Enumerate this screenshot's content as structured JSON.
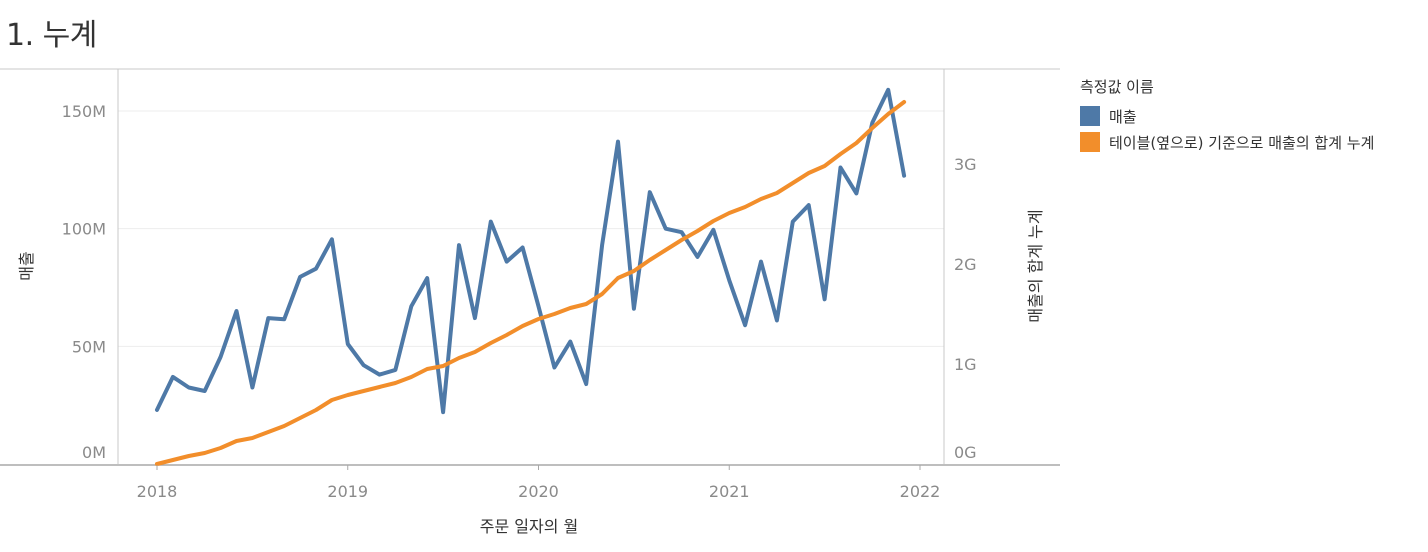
{
  "title": "1. 누계",
  "legend": {
    "title": "측정값 이름",
    "items": [
      {
        "label": "매출",
        "color": "#4e79a7"
      },
      {
        "label": "테이블(옆으로) 기준으로 매출의 합계 누계",
        "color": "#f28e2b"
      }
    ]
  },
  "chart_data": {
    "type": "line",
    "xlabel": "주문 일자의 월",
    "ylabel": "매출",
    "y2label": "매출의 합계 누계",
    "x_ticks": [
      "2018",
      "2019",
      "2020",
      "2021",
      "2022"
    ],
    "y_ticks": [
      "0M",
      "50M",
      "100M",
      "150M"
    ],
    "y2_ticks": [
      "0G",
      "1G",
      "2G",
      "3G"
    ],
    "ylim": [
      0,
      160000000
    ],
    "y2lim": [
      0,
      3700000000
    ],
    "grid": true,
    "x": [
      "2018-01",
      "2018-02",
      "2018-03",
      "2018-04",
      "2018-05",
      "2018-06",
      "2018-07",
      "2018-08",
      "2018-09",
      "2018-10",
      "2018-11",
      "2018-12",
      "2019-01",
      "2019-02",
      "2019-03",
      "2019-04",
      "2019-05",
      "2019-06",
      "2019-07",
      "2019-08",
      "2019-09",
      "2019-10",
      "2019-11",
      "2019-12",
      "2020-01",
      "2020-02",
      "2020-03",
      "2020-04",
      "2020-05",
      "2020-06",
      "2020-07",
      "2020-08",
      "2020-09",
      "2020-10",
      "2020-11",
      "2020-12",
      "2021-01",
      "2021-02",
      "2021-03",
      "2021-04",
      "2021-05",
      "2021-06",
      "2021-07",
      "2021-08",
      "2021-09",
      "2021-10",
      "2021-11",
      "2021-12"
    ],
    "series": [
      {
        "name": "매출",
        "axis": "left",
        "color": "#4e79a7",
        "values": [
          23000000,
          37000000,
          32500000,
          31000000,
          45500000,
          65000000,
          32500000,
          62000000,
          61500000,
          79500000,
          83000000,
          95500000,
          51000000,
          42000000,
          38000000,
          40000000,
          67000000,
          79000000,
          22000000,
          93000000,
          62000000,
          103000000,
          86000000,
          92000000,
          67000000,
          41000000,
          52000000,
          34000000,
          93000000,
          137000000,
          66000000,
          115500000,
          100000000,
          98500000,
          88000000,
          99500000,
          78000000,
          59000000,
          86000000,
          61000000,
          103000000,
          110000000,
          70000000,
          126000000,
          115000000,
          145000000,
          159000000,
          122500000
        ]
      },
      {
        "name": "테이블(옆으로) 기준으로 매출의 합계 누계",
        "axis": "right",
        "color": "#f28e2b",
        "values": [
          0,
          40000000,
          80000000,
          110000000,
          160000000,
          230000000,
          260000000,
          320000000,
          380000000,
          460000000,
          540000000,
          640000000,
          690000000,
          730000000,
          770000000,
          810000000,
          870000000,
          950000000,
          980000000,
          1060000000,
          1120000000,
          1210000000,
          1290000000,
          1380000000,
          1450000000,
          1500000000,
          1560000000,
          1600000000,
          1700000000,
          1860000000,
          1930000000,
          2040000000,
          2140000000,
          2240000000,
          2330000000,
          2430000000,
          2510000000,
          2570000000,
          2650000000,
          2710000000,
          2810000000,
          2910000000,
          2980000000,
          3100000000,
          3210000000,
          3360000000,
          3500000000,
          3620000000
        ]
      }
    ]
  }
}
